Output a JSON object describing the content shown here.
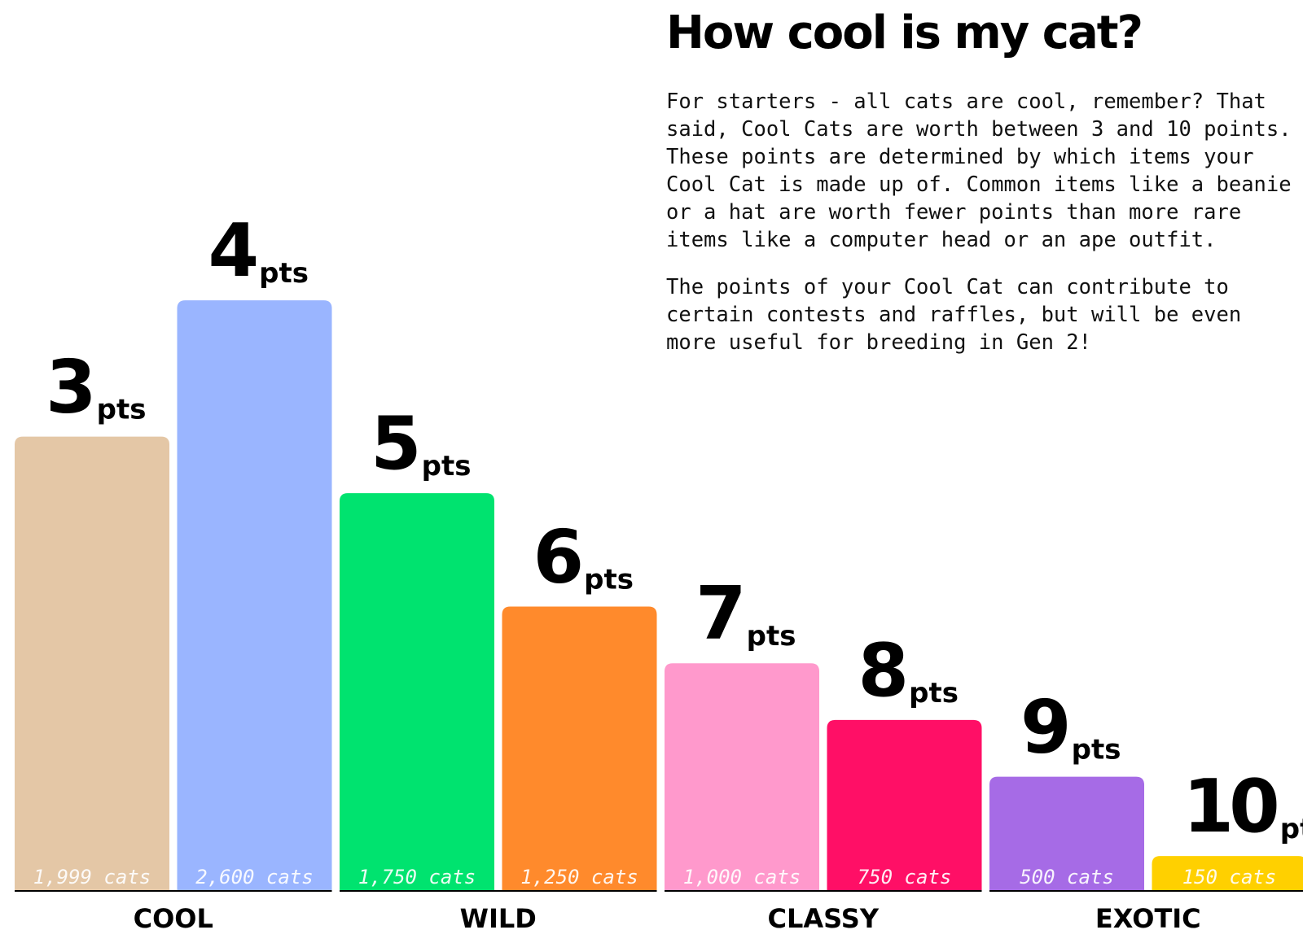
{
  "title": "How cool is my cat?",
  "paragraphs": [
    "For starters - all cats are cool, remember? That said, Cool Cats are worth between 3 and 10 points. These points are determined by which items your Cool Cat is made up of. Common items like a beanie or a hat are worth fewer points than more rare items like a computer head or an ape outfit.",
    "The points of your Cool Cat can contribute to certain contests and raffles, but will be even more useful for breeding in Gen 2!"
  ],
  "chart_data": {
    "type": "bar",
    "unit_label": "pts",
    "ylim": [
      0,
      3000
    ],
    "bars": [
      {
        "points": 3,
        "points_label": "3",
        "cats": 1999,
        "cats_label": "1,999 cats",
        "color": "#e4c7a6",
        "label_color": "#ffffff"
      },
      {
        "points": 4,
        "points_label": "4",
        "cats": 2600,
        "cats_label": "2,600 cats",
        "color": "#9ab5ff",
        "label_color": "#ffffff"
      },
      {
        "points": 5,
        "points_label": "5",
        "cats": 1750,
        "cats_label": "1,750 cats",
        "color": "#00e36f",
        "label_color": "#ffffff"
      },
      {
        "points": 6,
        "points_label": "6",
        "cats": 1250,
        "cats_label": "1,250 cats",
        "color": "#ff8a2c",
        "label_color": "#ffffff"
      },
      {
        "points": 7,
        "points_label": "7",
        "cats": 1000,
        "cats_label": "1,000 cats",
        "color": "#ff99cc",
        "label_color": "#ffffff"
      },
      {
        "points": 8,
        "points_label": "8",
        "cats": 750,
        "cats_label": "750 cats",
        "color": "#ff0f66",
        "label_color": "#ffffff"
      },
      {
        "points": 9,
        "points_label": "9",
        "cats": 500,
        "cats_label": "500 cats",
        "color": "#a66be6",
        "label_color": "#ffffff"
      },
      {
        "points": 10,
        "points_label": "10",
        "cats": 150,
        "cats_label": "150 cats",
        "color": "#ffd000",
        "label_color": "#ffffff"
      }
    ],
    "groups": [
      {
        "label": "COOL",
        "bars": [
          0,
          1
        ]
      },
      {
        "label": "WILD",
        "bars": [
          2,
          3
        ]
      },
      {
        "label": "CLASSY",
        "bars": [
          4,
          5
        ]
      },
      {
        "label": "EXOTIC",
        "bars": [
          6,
          7
        ]
      }
    ]
  }
}
